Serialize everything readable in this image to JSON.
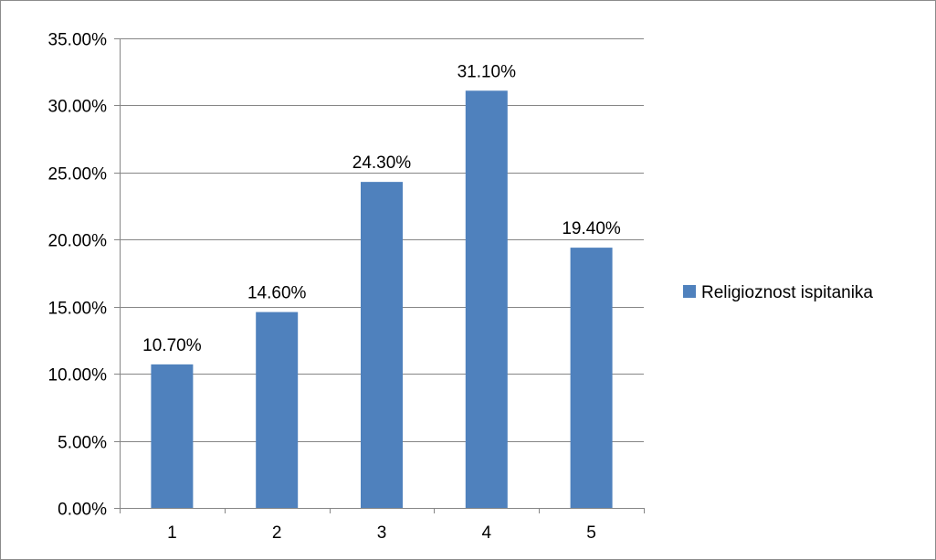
{
  "chart_data": {
    "type": "bar",
    "categories": [
      "1",
      "2",
      "3",
      "4",
      "5"
    ],
    "series": [
      {
        "name": "Religioznost ispitanika",
        "values": [
          10.7,
          14.6,
          24.3,
          31.1,
          19.4
        ],
        "color": "#4f81bd"
      }
    ],
    "data_labels": [
      "10.70%",
      "14.60%",
      "24.30%",
      "31.10%",
      "19.40%"
    ],
    "y_tick_labels": [
      "0.00%",
      "5.00%",
      "10.00%",
      "15.00%",
      "20.00%",
      "25.00%",
      "30.00%",
      "35.00%"
    ],
    "y_ticks": [
      0,
      5,
      10,
      15,
      20,
      25,
      30,
      35
    ],
    "ylim": [
      0,
      35
    ],
    "y_unit": "%",
    "grid": true,
    "gridline_color": "#868686",
    "legend_position": "right",
    "title": "",
    "xlabel": "",
    "ylabel": ""
  }
}
